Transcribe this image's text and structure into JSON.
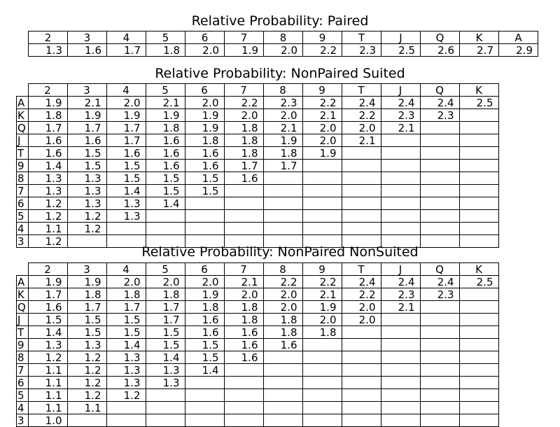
{
  "chart_data": [
    {
      "type": "table",
      "title": "Relative Probability: Paired",
      "columns": [
        "2",
        "3",
        "4",
        "5",
        "6",
        "7",
        "8",
        "9",
        "T",
        "J",
        "Q",
        "K",
        "A"
      ],
      "rows": [
        {
          "label": "",
          "values": [
            "1.3",
            "1.6",
            "1.7",
            "1.8",
            "2.0",
            "1.9",
            "2.0",
            "2.2",
            "2.3",
            "2.5",
            "2.6",
            "2.7",
            "2.9"
          ]
        }
      ]
    },
    {
      "type": "table",
      "title": "Relative Probability: NonPaired Suited",
      "columns": [
        "2",
        "3",
        "4",
        "5",
        "6",
        "7",
        "8",
        "9",
        "T",
        "J",
        "Q",
        "K"
      ],
      "rows": [
        {
          "label": "A",
          "values": [
            "1.9",
            "2.1",
            "2.0",
            "2.1",
            "2.0",
            "2.2",
            "2.3",
            "2.2",
            "2.4",
            "2.4",
            "2.4",
            "2.5"
          ]
        },
        {
          "label": "K",
          "values": [
            "1.8",
            "1.9",
            "1.9",
            "1.9",
            "1.9",
            "2.0",
            "2.0",
            "2.1",
            "2.2",
            "2.3",
            "2.3",
            ""
          ]
        },
        {
          "label": "Q",
          "values": [
            "1.7",
            "1.7",
            "1.7",
            "1.8",
            "1.9",
            "1.8",
            "2.1",
            "2.0",
            "2.0",
            "2.1",
            "",
            ""
          ]
        },
        {
          "label": "J",
          "values": [
            "1.6",
            "1.6",
            "1.7",
            "1.6",
            "1.8",
            "1.8",
            "1.9",
            "2.0",
            "2.1",
            "",
            "",
            ""
          ]
        },
        {
          "label": "T",
          "values": [
            "1.6",
            "1.5",
            "1.6",
            "1.6",
            "1.6",
            "1.8",
            "1.8",
            "1.9",
            "",
            "",
            "",
            ""
          ]
        },
        {
          "label": "9",
          "values": [
            "1.4",
            "1.5",
            "1.5",
            "1.6",
            "1.6",
            "1.7",
            "1.7",
            "",
            "",
            "",
            "",
            ""
          ]
        },
        {
          "label": "8",
          "values": [
            "1.3",
            "1.3",
            "1.5",
            "1.5",
            "1.5",
            "1.6",
            "",
            "",
            "",
            "",
            "",
            ""
          ]
        },
        {
          "label": "7",
          "values": [
            "1.3",
            "1.3",
            "1.4",
            "1.5",
            "1.5",
            "",
            "",
            "",
            "",
            "",
            "",
            ""
          ]
        },
        {
          "label": "6",
          "values": [
            "1.2",
            "1.3",
            "1.3",
            "1.4",
            "",
            "",
            "",
            "",
            "",
            "",
            "",
            ""
          ]
        },
        {
          "label": "5",
          "values": [
            "1.2",
            "1.2",
            "1.3",
            "",
            "",
            "",
            "",
            "",
            "",
            "",
            "",
            ""
          ]
        },
        {
          "label": "4",
          "values": [
            "1.1",
            "1.2",
            "",
            "",
            "",
            "",
            "",
            "",
            "",
            "",
            "",
            ""
          ]
        },
        {
          "label": "3",
          "values": [
            "1.2",
            "",
            "",
            "",
            "",
            "",
            "",
            "",
            "",
            "",
            "",
            ""
          ]
        }
      ]
    },
    {
      "type": "table",
      "title": "Relative Probability: NonPaired NonSuited",
      "columns": [
        "2",
        "3",
        "4",
        "5",
        "6",
        "7",
        "8",
        "9",
        "T",
        "J",
        "Q",
        "K"
      ],
      "rows": [
        {
          "label": "A",
          "values": [
            "1.9",
            "1.9",
            "2.0",
            "2.0",
            "2.0",
            "2.1",
            "2.2",
            "2.2",
            "2.4",
            "2.4",
            "2.4",
            "2.5"
          ]
        },
        {
          "label": "K",
          "values": [
            "1.7",
            "1.8",
            "1.8",
            "1.8",
            "1.9",
            "2.0",
            "2.0",
            "2.1",
            "2.2",
            "2.3",
            "2.3",
            ""
          ]
        },
        {
          "label": "Q",
          "values": [
            "1.6",
            "1.7",
            "1.7",
            "1.7",
            "1.8",
            "1.8",
            "2.0",
            "1.9",
            "2.0",
            "2.1",
            "",
            ""
          ]
        },
        {
          "label": "J",
          "values": [
            "1.5",
            "1.5",
            "1.5",
            "1.7",
            "1.6",
            "1.8",
            "1.8",
            "2.0",
            "2.0",
            "",
            "",
            ""
          ]
        },
        {
          "label": "T",
          "values": [
            "1.4",
            "1.5",
            "1.5",
            "1.5",
            "1.6",
            "1.6",
            "1.8",
            "1.8",
            "",
            "",
            "",
            ""
          ]
        },
        {
          "label": "9",
          "values": [
            "1.3",
            "1.3",
            "1.4",
            "1.5",
            "1.5",
            "1.6",
            "1.6",
            "",
            "",
            "",
            "",
            ""
          ]
        },
        {
          "label": "8",
          "values": [
            "1.2",
            "1.2",
            "1.3",
            "1.4",
            "1.5",
            "1.6",
            "",
            "",
            "",
            "",
            "",
            ""
          ]
        },
        {
          "label": "7",
          "values": [
            "1.1",
            "1.2",
            "1.3",
            "1.3",
            "1.4",
            "",
            "",
            "",
            "",
            "",
            "",
            ""
          ]
        },
        {
          "label": "6",
          "values": [
            "1.1",
            "1.2",
            "1.3",
            "1.3",
            "",
            "",
            "",
            "",
            "",
            "",
            "",
            ""
          ]
        },
        {
          "label": "5",
          "values": [
            "1.1",
            "1.2",
            "1.2",
            "",
            "",
            "",
            "",
            "",
            "",
            "",
            "",
            ""
          ]
        },
        {
          "label": "4",
          "values": [
            "1.1",
            "1.1",
            "",
            "",
            "",
            "",
            "",
            "",
            "",
            "",
            "",
            ""
          ]
        },
        {
          "label": "3",
          "values": [
            "1.0",
            "",
            "",
            "",
            "",
            "",
            "",
            "",
            "",
            "",
            "",
            ""
          ]
        }
      ]
    }
  ]
}
